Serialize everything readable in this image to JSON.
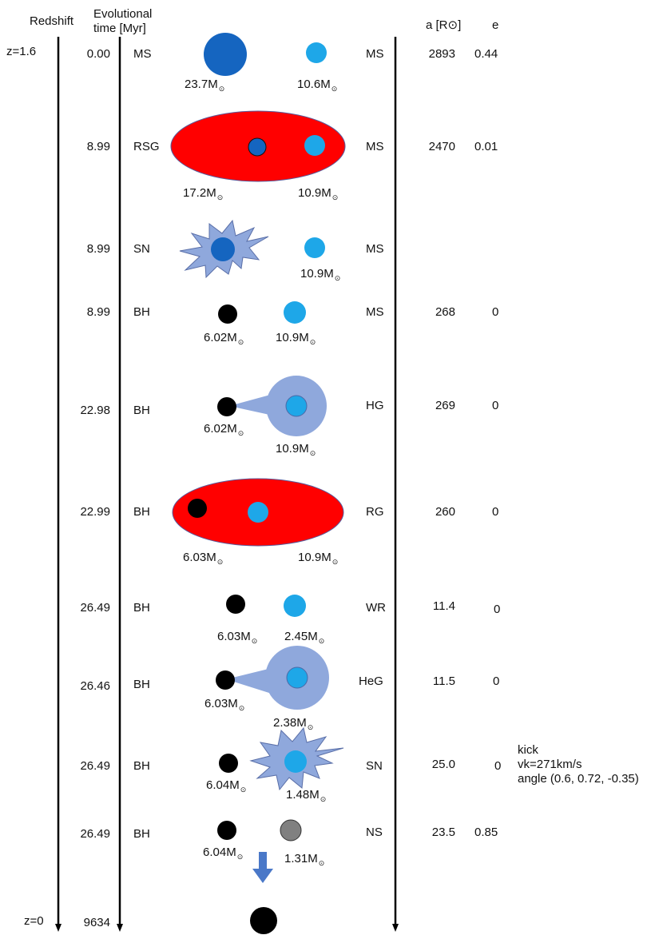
{
  "headers": {
    "redshift": "Redshift",
    "time_line1": "Evolutional",
    "time_line2": "time [Myr]",
    "separation": "a [R⊙]",
    "eccentricity": "e"
  },
  "redshift_labels": {
    "start": "z=1.6",
    "end": "z=0"
  },
  "final_time": "9634",
  "sun_symbol": "⊙",
  "mass_unit": "M",
  "colors": {
    "dark_blue_star": "#1565c0",
    "light_blue_star": "#1ea7e8",
    "giant_envelope": "#ff0000",
    "roche_lobe": "#8fa8dc",
    "supernova": "#8fa8dc",
    "black_hole": "#000000",
    "neutron_star": "#808080",
    "arrow": "#4a78c8"
  },
  "stages": [
    {
      "time": "0.00",
      "state1": "MS",
      "state2": "MS",
      "a": "2893",
      "e": "0.44",
      "mass1": "23.7",
      "mass2": "10.6"
    },
    {
      "time": "8.99",
      "state1": "RSG",
      "state2": "MS",
      "a": "2470",
      "e": "0.01",
      "mass1": "17.2",
      "mass2": "10.9"
    },
    {
      "time": "8.99",
      "state1": "SN",
      "state2": "MS",
      "a": "",
      "e": "",
      "mass1": "",
      "mass2": "10.9"
    },
    {
      "time": "8.99",
      "state1": "BH",
      "state2": "MS",
      "a": "268",
      "e": "0",
      "mass1": "6.02",
      "mass2": "10.9"
    },
    {
      "time": "22.98",
      "state1": "BH",
      "state2": "HG",
      "a": "269",
      "e": "0",
      "mass1": "6.02",
      "mass2": "10.9"
    },
    {
      "time": "22.99",
      "state1": "BH",
      "state2": "RG",
      "a": "260",
      "e": "0",
      "mass1": "6.03",
      "mass2": "10.9"
    },
    {
      "time": "26.49",
      "state1": "BH",
      "state2": "WR",
      "a": "11.4",
      "e": "0",
      "mass1": "6.03",
      "mass2": "2.45"
    },
    {
      "time": "26.46",
      "state1": "BH",
      "state2": "HeG",
      "a": "11.5",
      "e": "0",
      "mass1": "6.03",
      "mass2": "2.38"
    },
    {
      "time": "26.49",
      "state1": "BH",
      "state2": "SN",
      "a": "25.0",
      "e": "0",
      "mass1": "6.04",
      "mass2": "1.48"
    },
    {
      "time": "26.49",
      "state1": "BH",
      "state2": "NS",
      "a": "23.5",
      "e": "0.85",
      "mass1": "6.04",
      "mass2": "1.31"
    }
  ],
  "kick": {
    "line1": "kick",
    "line2": "vk=271km/s",
    "line3": "angle (0.6, 0.72, -0.35)"
  }
}
